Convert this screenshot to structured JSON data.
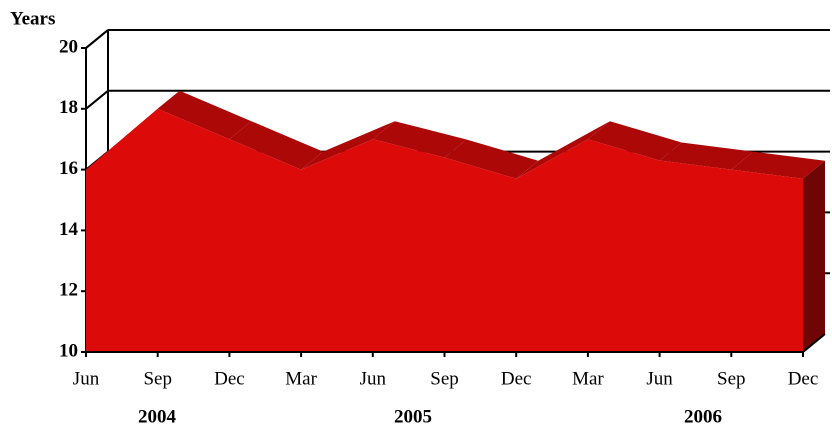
{
  "chart_data": {
    "type": "area3d",
    "y_label": "Years",
    "categories": [
      "Jun",
      "Sep",
      "Dec",
      "Mar",
      "Jun",
      "Sep",
      "Dec",
      "Mar",
      "Jun",
      "Sep",
      "Dec"
    ],
    "year_labels": [
      "2004",
      "2005",
      "2006"
    ],
    "values": [
      16,
      18,
      17,
      16,
      17,
      16.4,
      15.7,
      17,
      16.3,
      16,
      15.7
    ],
    "color": "#dd0a0a",
    "ylim": [
      10,
      20
    ],
    "yticks": [
      10,
      12,
      14,
      16,
      18,
      20
    ],
    "grid": true
  }
}
